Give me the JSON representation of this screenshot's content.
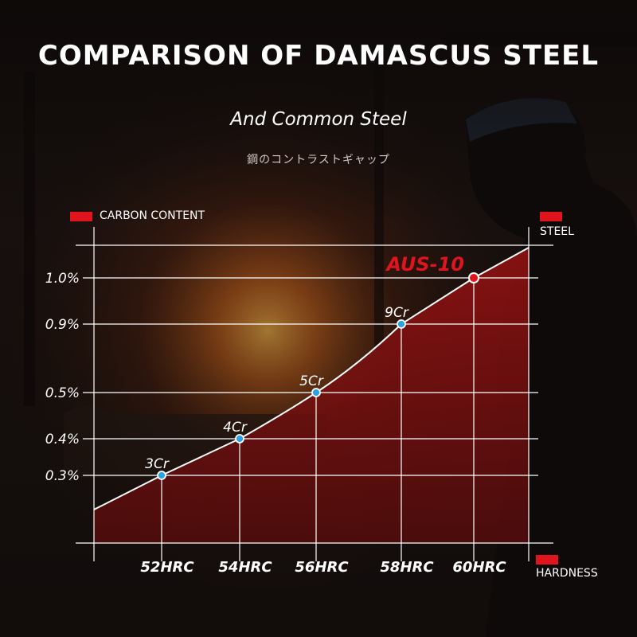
{
  "header": {
    "title": "COMPARISON OF DAMASCUS STEEL",
    "subtitle": "And Common Steel",
    "japanese": "鋼のコントラストギャップ"
  },
  "legend": {
    "y_axis_label": "CARBON CONTENT",
    "series_label": "STEEL",
    "x_axis_label": "HARDNESS"
  },
  "colors": {
    "accent": "#e0141c",
    "area": "#8f1212",
    "line": "#ffffff",
    "point": "#2aa3e6",
    "highlight": "#e0141c"
  },
  "chart_data": {
    "type": "area",
    "title": "COMPARISON OF DAMASCUS STEEL",
    "subtitle": "And Common Steel",
    "xlabel": "HARDNESS",
    "ylabel": "CARBON CONTENT",
    "x_ticks": [
      "52HRC",
      "54HRC",
      "56HRC",
      "58HRC",
      "60HRC"
    ],
    "y_ticks": [
      "0.3%",
      "0.4%",
      "0.5%",
      "0.9%",
      "1.0%"
    ],
    "y_tick_values": [
      0.3,
      0.4,
      0.5,
      0.9,
      1.0
    ],
    "series": [
      {
        "name": "STEEL",
        "points": [
          {
            "label": "3Cr",
            "x": "52HRC",
            "y": 0.3
          },
          {
            "label": "4Cr",
            "x": "54HRC",
            "y": 0.4
          },
          {
            "label": "5Cr",
            "x": "56HRC",
            "y": 0.5
          },
          {
            "label": "9Cr",
            "x": "58HRC",
            "y": 0.9
          },
          {
            "label": "AUS-10",
            "x": "60HRC",
            "y": 1.0,
            "highlight": true
          }
        ]
      }
    ],
    "grid": true
  }
}
